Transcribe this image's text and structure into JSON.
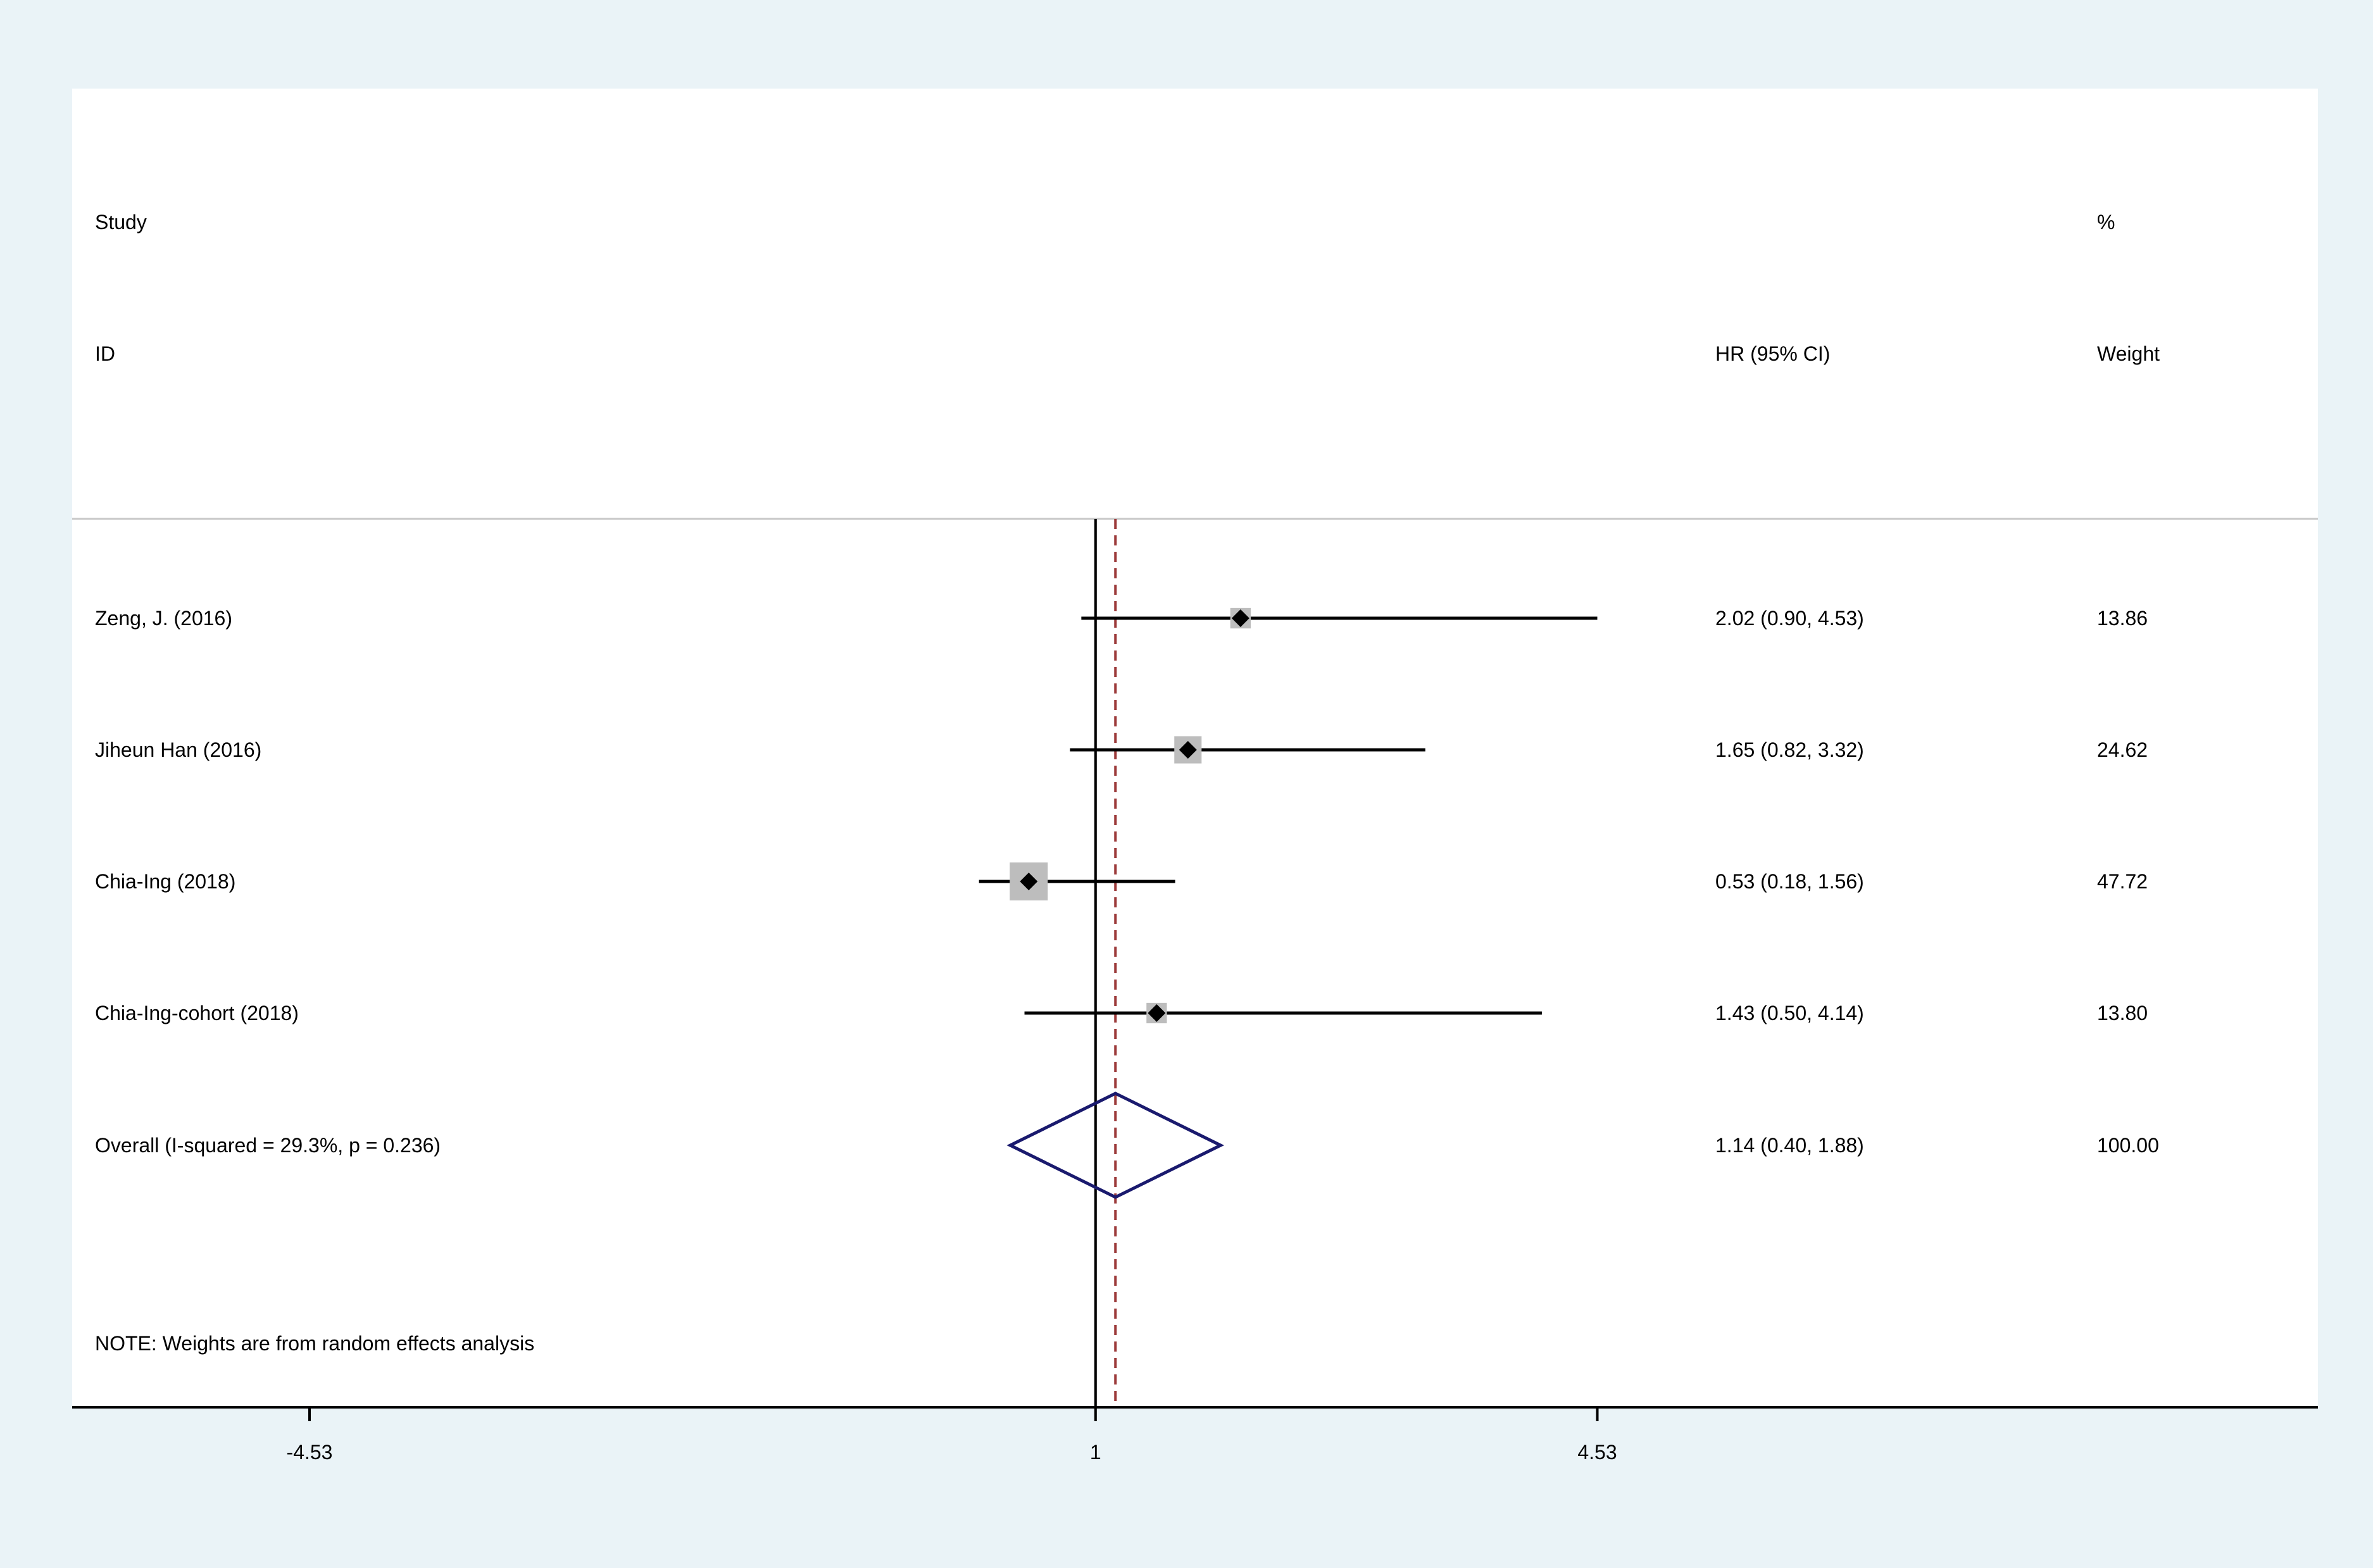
{
  "colors": {
    "background": "#eaf3f7",
    "panel": "#ffffff",
    "ci_line": "#000000",
    "weight_box": "#bdbdbd",
    "point": "#000000",
    "diamond": "#1a1a6e",
    "overall_line": "#9b3a3a",
    "null_line": "#000000",
    "separator": "#c8c8c8"
  },
  "header": {
    "study_line1": "Study",
    "study_line2": "ID",
    "effect_label": "HR (95% CI)",
    "weight_line1": "%",
    "weight_line2": "Weight"
  },
  "note": "NOTE: Weights are from random effects analysis",
  "chart_data": {
    "type": "forest",
    "effect_measure": "HR",
    "null_value": 1,
    "xlim": [
      -6.2,
      9.6
    ],
    "xticks": [
      -4.53,
      1,
      4.53
    ],
    "xtick_labels": [
      "-4.53",
      "1",
      "4.53"
    ],
    "studies": [
      {
        "label": "Zeng, J. (2016)",
        "hr": 2.02,
        "lower": 0.9,
        "upper": 4.53,
        "ci_text": "2.02 (0.90, 4.53)",
        "weight": 13.86,
        "weight_text": "13.86"
      },
      {
        "label": "Jiheun Han  (2016)",
        "hr": 1.65,
        "lower": 0.82,
        "upper": 3.32,
        "ci_text": "1.65 (0.82, 3.32)",
        "weight": 24.62,
        "weight_text": "24.62"
      },
      {
        "label": "Chia-Ing  (2018)",
        "hr": 0.53,
        "lower": 0.18,
        "upper": 1.56,
        "ci_text": "0.53 (0.18, 1.56)",
        "weight": 47.72,
        "weight_text": "47.72"
      },
      {
        "label": "Chia-Ing-cohort (2018)",
        "hr": 1.43,
        "lower": 0.5,
        "upper": 4.14,
        "ci_text": "1.43 (0.50, 4.14)",
        "weight": 13.8,
        "weight_text": "13.80"
      }
    ],
    "overall": {
      "label": "Overall  (I-squared = 29.3%, p = 0.236)",
      "hr": 1.14,
      "lower": 0.4,
      "upper": 1.88,
      "ci_text": "1.14 (0.40, 1.88)",
      "weight_text": "100.00"
    }
  }
}
